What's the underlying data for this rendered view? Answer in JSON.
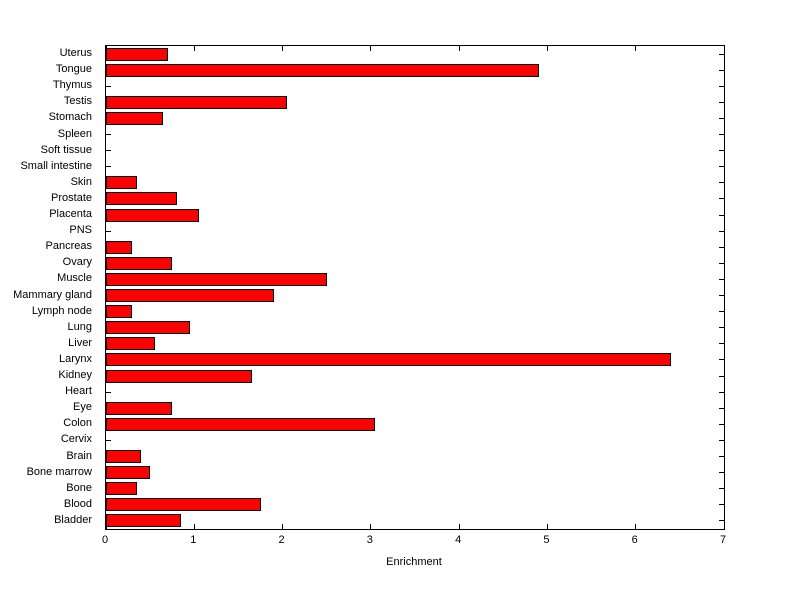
{
  "figure": {
    "background": "#FFFFFF"
  },
  "chart_data": {
    "type": "bar",
    "orientation": "horizontal",
    "title": "",
    "xlabel": "Enrichment",
    "ylabel": "",
    "xlim": [
      0,
      7
    ],
    "x_ticks": [
      0,
      1,
      2,
      3,
      4,
      5,
      6,
      7
    ],
    "grid": false,
    "legend": null,
    "bar_color": "#FF0000",
    "bar_edge_color": "#000000",
    "categories": [
      "Uterus",
      "Tongue",
      "Thymus",
      "Testis",
      "Stomach",
      "Spleen",
      "Soft tissue",
      "Small intestine",
      "Skin",
      "Prostate",
      "Placenta",
      "PNS",
      "Pancreas",
      "Ovary",
      "Muscle",
      "Mammary gland",
      "Lymph node",
      "Lung",
      "Liver",
      "Larynx",
      "Kidney",
      "Heart",
      "Eye",
      "Colon",
      "Cervix",
      "Brain",
      "Bone marrow",
      "Bone",
      "Blood",
      "Bladder"
    ],
    "values": [
      0.7,
      4.9,
      0,
      2.05,
      0.65,
      0,
      0,
      0,
      0.35,
      0.8,
      1.05,
      0,
      0.3,
      0.75,
      2.5,
      1.9,
      0.3,
      0.95,
      0.55,
      6.4,
      1.65,
      0,
      0.75,
      3.05,
      0,
      0.4,
      0.5,
      0.35,
      1.75,
      0.85
    ]
  }
}
